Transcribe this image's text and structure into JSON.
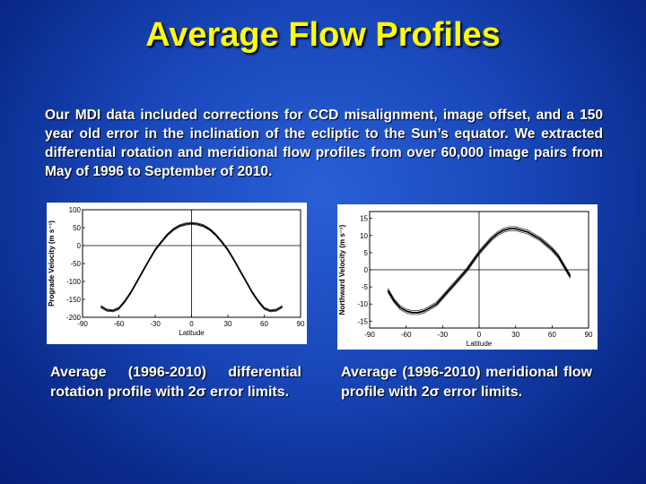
{
  "title": "Average Flow Profiles",
  "intro": "Our MDI data included corrections for CCD misalignment, image offset, and a 150 year old error in the inclination of the ecliptic to the Sun’s equator. We extracted differential rotation and meridional flow profiles from over 60,000 image pairs from May of 1996 to September of 2010.",
  "captions": {
    "left": "Average (1996-2010) differential rotation profile with 2σ error limits.",
    "right": "Average (1996-2010) meridional flow profile with 2σ error limits."
  },
  "chart_data": [
    {
      "type": "line",
      "title": "",
      "xlabel": "Latitude",
      "ylabel": "Prograde Velocity (m s⁻¹)",
      "xlim": [
        -90,
        90
      ],
      "ylim": [
        -200,
        100
      ],
      "xticks": [
        -90,
        -60,
        -30,
        0,
        30,
        60,
        90
      ],
      "yticks": [
        100,
        50,
        0,
        -50,
        -100,
        -150,
        -200
      ],
      "series": [
        {
          "x": [
            -75,
            -70,
            -65,
            -60,
            -55,
            -50,
            -45,
            -40,
            -35,
            -30,
            -25,
            -20,
            -15,
            -10,
            -5,
            0,
            5,
            10,
            15,
            20,
            25,
            30,
            35,
            40,
            45,
            50,
            55,
            60,
            65,
            70,
            75
          ],
          "values": [
            -170,
            -180,
            -182,
            -175,
            -155,
            -130,
            -100,
            -70,
            -40,
            -12,
            10,
            30,
            45,
            55,
            60,
            62,
            60,
            55,
            45,
            30,
            10,
            -12,
            -40,
            -70,
            -100,
            -130,
            -155,
            -175,
            -182,
            -180,
            -170
          ]
        }
      ]
    },
    {
      "type": "line",
      "title": "",
      "xlabel": "Latitude",
      "ylabel": "Northward Velocity (m s⁻¹)",
      "xlim": [
        -90,
        90
      ],
      "ylim": [
        -17,
        17
      ],
      "xticks": [
        -90,
        -60,
        -30,
        0,
        30,
        60,
        90
      ],
      "yticks": [
        15,
        10,
        5,
        0,
        -5,
        -10,
        -15
      ],
      "series": [
        {
          "x": [
            -75,
            -70,
            -65,
            -60,
            -55,
            -50,
            -45,
            -40,
            -35,
            -30,
            -25,
            -20,
            -15,
            -10,
            -5,
            0,
            5,
            10,
            15,
            20,
            25,
            30,
            35,
            40,
            45,
            50,
            55,
            60,
            65,
            70,
            75
          ],
          "values": [
            -6,
            -9,
            -11,
            -12,
            -12.5,
            -12.5,
            -12,
            -11,
            -10,
            -8,
            -6,
            -4,
            -2,
            0,
            2.5,
            5,
            7,
            9,
            10.5,
            11.5,
            12,
            12,
            11.5,
            11,
            10,
            9,
            7.5,
            6,
            4,
            1,
            -2
          ]
        }
      ]
    }
  ]
}
